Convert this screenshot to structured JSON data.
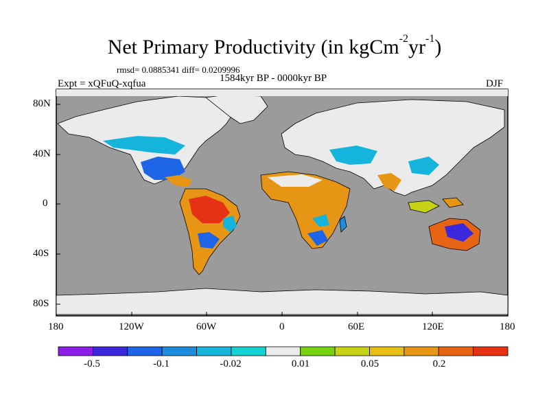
{
  "title": "Net Primary Productivity (in kgCm",
  "title_exp1": "-2",
  "title_mid": "yr",
  "title_exp2": "-1",
  "title_end": ")",
  "stats": "rmsd= 0.0885341 diff= 0.0209996",
  "experiment": "Expt = xQFuQ-xqfua",
  "period": "1584kyr BP - 0000kyr BP",
  "season": "DJF",
  "lat_ticks": [
    "80N",
    "40N",
    "0",
    "40S",
    "80S"
  ],
  "lon_ticks": [
    "180",
    "120W",
    "60W",
    "0",
    "60E",
    "120E",
    "180"
  ],
  "colorbar": {
    "colors": [
      "#8a1ee6",
      "#3c28dc",
      "#1e64e6",
      "#1e8cdc",
      "#14b4dc",
      "#14d2d2",
      "#ebebeb",
      "#78d214",
      "#c8d214",
      "#e6be14",
      "#e69614",
      "#e66414",
      "#e63214"
    ],
    "labels": [
      "-0.5",
      "-0.1",
      "-0.02",
      "0.01",
      "0.05",
      "0.2"
    ]
  },
  "colors": {
    "ocean": "#9b9b9b",
    "land_nochange": "#ebebeb"
  }
}
